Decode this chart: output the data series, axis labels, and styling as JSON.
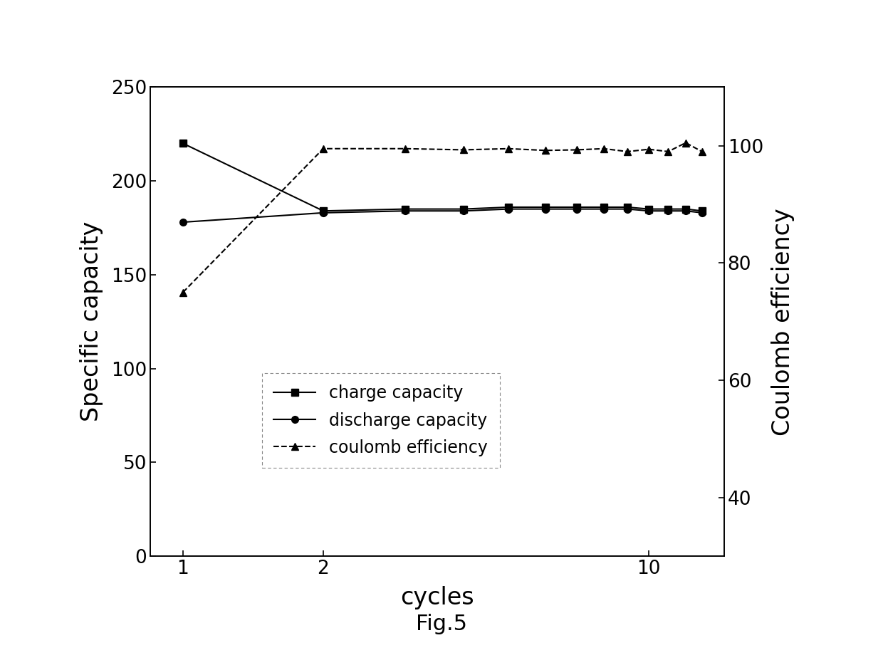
{
  "cycles": [
    1,
    2,
    3,
    4,
    5,
    6,
    7,
    8,
    9,
    10,
    11,
    12,
    13
  ],
  "charge_capacity": [
    220,
    184,
    185,
    185,
    186,
    186,
    186,
    186,
    186,
    185,
    185,
    185,
    184
  ],
  "discharge_capacity": [
    178,
    183,
    184,
    184,
    185,
    185,
    185,
    185,
    185,
    184,
    184,
    184,
    183
  ],
  "coulomb_efficiency": [
    75,
    99.5,
    99.5,
    99.3,
    99.5,
    99.2,
    99.3,
    99.5,
    99.0,
    99.4,
    99.0,
    100.5,
    99.0
  ],
  "left_ylim": [
    0,
    250
  ],
  "left_yticks": [
    0,
    50,
    100,
    150,
    200,
    250
  ],
  "right_ylim": [
    30,
    110
  ],
  "right_yticks": [
    40,
    60,
    80,
    100
  ],
  "xlabel": "cycles",
  "ylabel_left": "Specific capacity",
  "ylabel_right": "Coulomb efficiency",
  "legend_labels": [
    "charge capacity",
    "discharge capacity",
    "coulomb efficiency"
  ],
  "fig_label": "Fig.5",
  "line_color": "black",
  "background_color": "#ffffff",
  "marker_charge": "s",
  "marker_discharge": "o",
  "marker_coulomb": "^",
  "linestyle_charge": "-",
  "linestyle_discharge": "-",
  "linestyle_coulomb": "--",
  "xlabel_fontsize": 24,
  "ylabel_fontsize": 24,
  "tick_fontsize": 19,
  "legend_fontsize": 17,
  "fig_label_fontsize": 22
}
